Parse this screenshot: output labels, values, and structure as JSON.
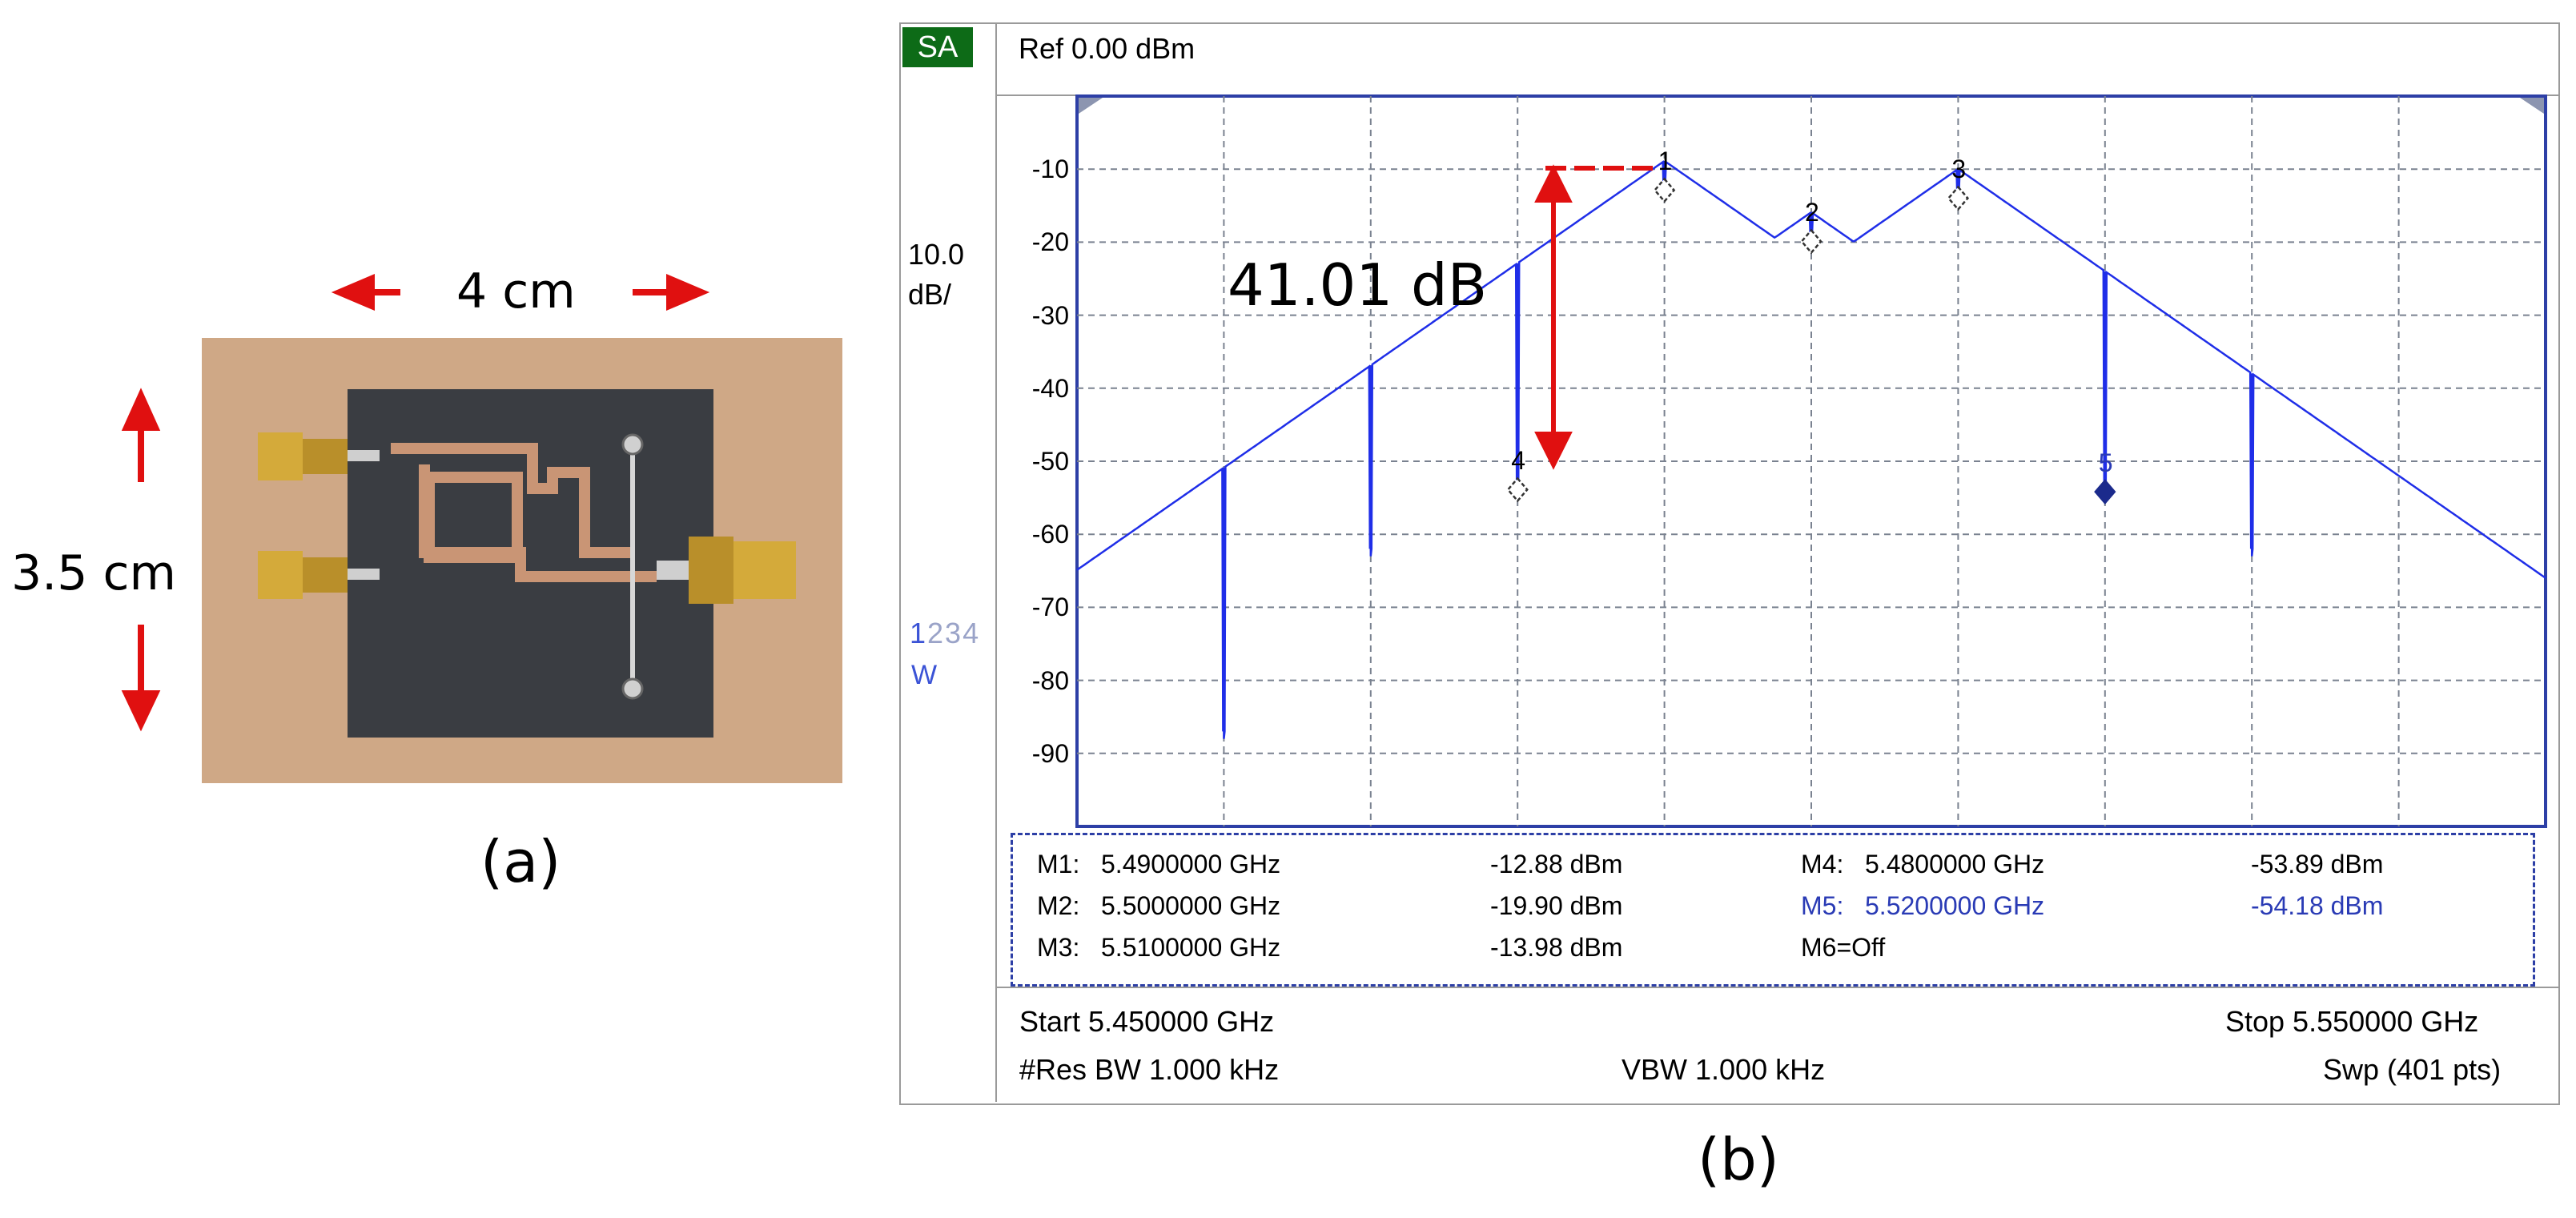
{
  "photo": {
    "width_label": "4 cm",
    "height_label": "3.5 cm",
    "caption": "(a)"
  },
  "analyzer": {
    "mode_badge": "SA",
    "ref_level": "Ref 0.00 dBm",
    "scale_value": "10.0",
    "scale_unit": "dB/",
    "trace_active": "1",
    "trace_others": "234",
    "trace_mode": "W",
    "markers": [
      {
        "label": "M1:",
        "freq": "5.4900000 GHz",
        "level": "-12.88 dBm"
      },
      {
        "label": "M2:",
        "freq": "5.5000000 GHz",
        "level": "-19.90 dBm"
      },
      {
        "label": "M3:",
        "freq": "5.5100000 GHz",
        "level": "-13.98 dBm"
      },
      {
        "label": "M4:",
        "freq": "5.4800000 GHz",
        "level": "-53.89 dBm"
      },
      {
        "label": "M5:",
        "freq": "5.5200000 GHz",
        "level": "-54.18 dBm"
      },
      {
        "label": "M6=Off",
        "freq": "",
        "level": ""
      }
    ],
    "start": "Start 5.450000 GHz",
    "stop": "Stop 5.550000 GHz",
    "res_bw": "#Res BW 1.000 kHz",
    "vbw": "VBW 1.000 kHz",
    "sweep": "Swp (401 pts)",
    "annotation": "41.01 dB",
    "caption": "(b)"
  },
  "chart_data": {
    "type": "line",
    "x_unit": "GHz",
    "y_unit": "dBm",
    "xlim": [
      5.45,
      5.55
    ],
    "ylim": [
      -100,
      0
    ],
    "grid": true,
    "yticks": [
      "-10",
      "-20",
      "-30",
      "-40",
      "-50",
      "-60",
      "-70",
      "-80",
      "-90"
    ],
    "noise_floor": -89,
    "spurs": [
      {
        "x": 5.46,
        "y": -88
      },
      {
        "x": 5.47,
        "y": -63
      },
      {
        "x": 5.48,
        "y": -53.89
      },
      {
        "x": 5.49,
        "y": -12.88
      },
      {
        "x": 5.5,
        "y": -19.9
      },
      {
        "x": 5.51,
        "y": -13.98
      },
      {
        "x": 5.52,
        "y": -54.18
      },
      {
        "x": 5.53,
        "y": -63
      }
    ],
    "marker_points": [
      {
        "id": "1",
        "x": 5.49,
        "y": -12.88,
        "filled": false
      },
      {
        "id": "2",
        "x": 5.5,
        "y": -19.9,
        "filled": false
      },
      {
        "id": "3",
        "x": 5.51,
        "y": -13.98,
        "filled": false
      },
      {
        "id": "4",
        "x": 5.48,
        "y": -53.89,
        "filled": false
      },
      {
        "id": "5",
        "x": 5.52,
        "y": -54.18,
        "filled": true
      }
    ],
    "colors": {
      "trace": "#1f2ee8",
      "grid": "#7a8290",
      "annotation": "#e01010",
      "marker_fill": "#1b2a8c"
    }
  }
}
